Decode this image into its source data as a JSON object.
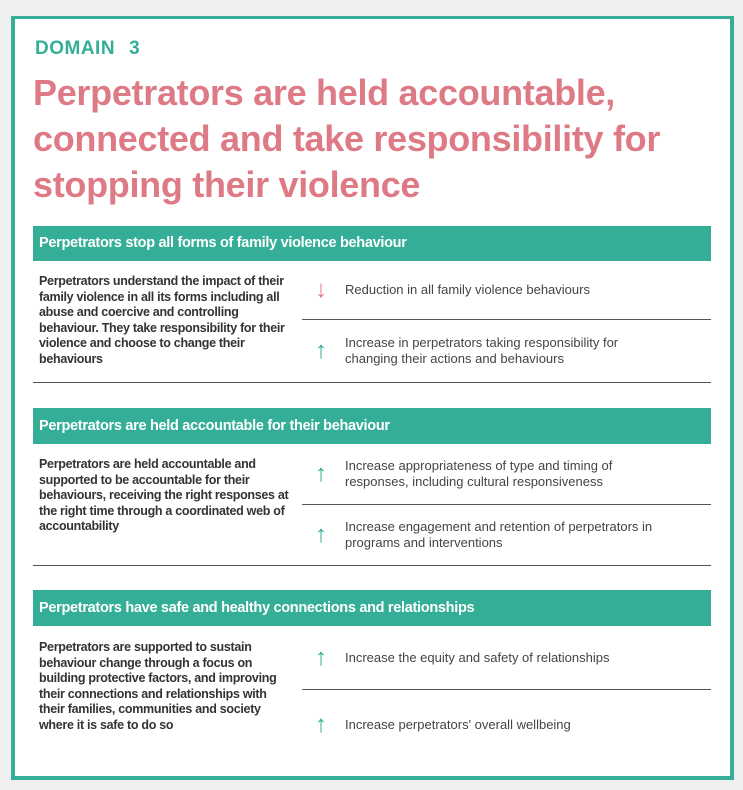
{
  "domain": {
    "label": "DOMAIN",
    "number": "3"
  },
  "title": "Perpetrators are held accountable, connected and take responsibility for stopping their violence",
  "colors": {
    "teal": "#35ae98",
    "pink": "#dd7a85"
  },
  "sections": [
    {
      "heading": "Perpetrators stop all forms of family violence behaviour",
      "description": "Perpetrators understand the impact of their family violence in all its forms including all abuse and coercive and controlling behaviour.  They take responsibility for their violence and choose to change their behaviours",
      "outcomes": [
        {
          "direction": "down",
          "icon": "arrow-down-icon",
          "text": "Reduction in all family violence behaviours"
        },
        {
          "direction": "up",
          "icon": "arrow-up-icon",
          "text": "Increase in perpetrators taking responsibility for changing their actions and behaviours"
        }
      ]
    },
    {
      "heading": "Perpetrators are held accountable for their behaviour",
      "description": "Perpetrators are held accountable and supported to be accountable for their behaviours, receiving the right responses at the right time through a coordinated web of accountability",
      "outcomes": [
        {
          "direction": "up",
          "icon": "arrow-up-icon",
          "text": "Increase appropriateness of type and timing of responses, including cultural responsiveness"
        },
        {
          "direction": "up",
          "icon": "arrow-up-icon",
          "text": "Increase engagement and retention of perpetrators in programs and interventions"
        }
      ]
    },
    {
      "heading": "Perpetrators have safe and healthy connections and relationships",
      "description": "Perpetrators are supported to sustain behaviour change through a focus on building protective factors, and improving their connections and relationships with their families, communities and society where it is safe to do so",
      "outcomes": [
        {
          "direction": "up",
          "icon": "arrow-up-icon",
          "text": "Increase the equity and safety of relationships"
        },
        {
          "direction": "up",
          "icon": "arrow-up-icon",
          "text": "Increase perpetrators' overall wellbeing"
        }
      ]
    }
  ]
}
